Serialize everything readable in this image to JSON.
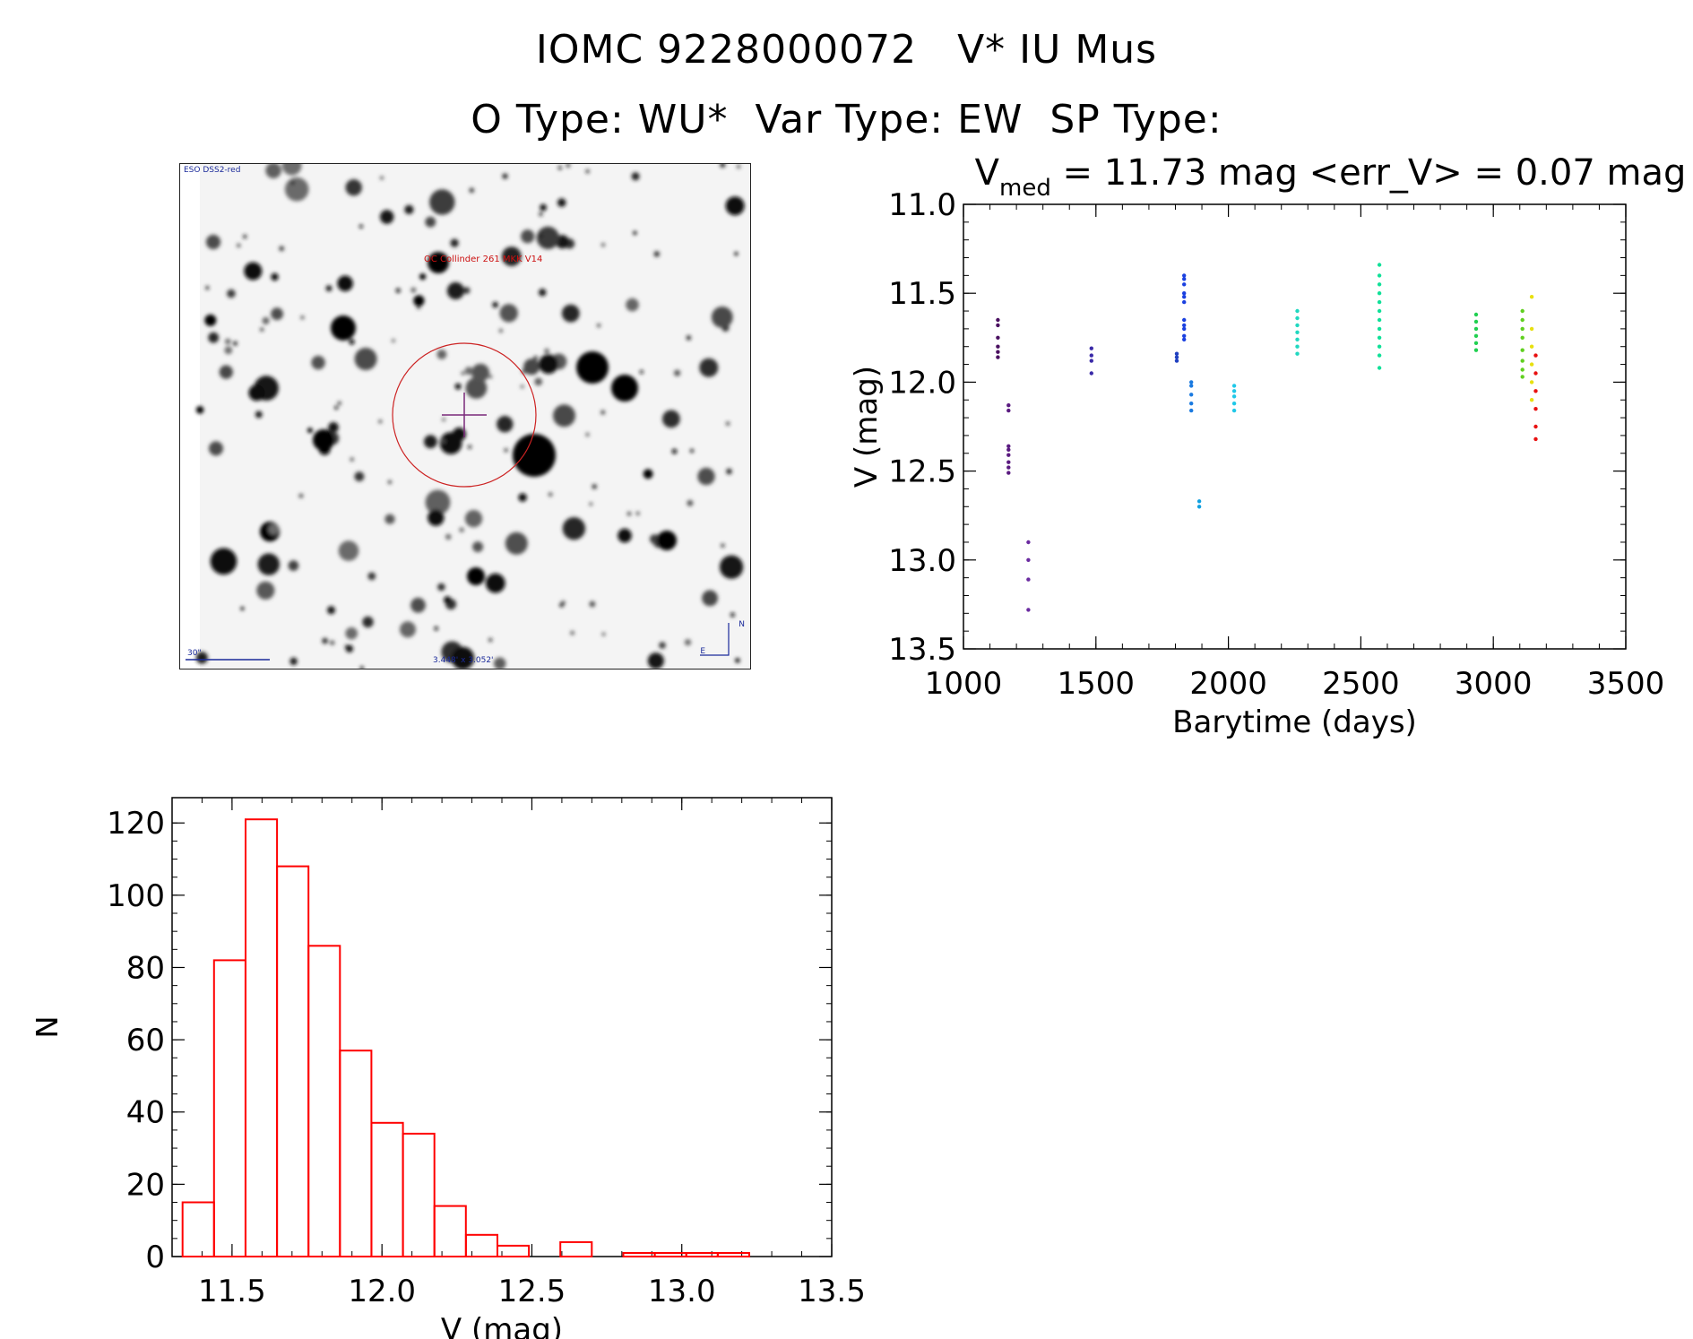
{
  "header": {
    "title_line1": "IOMC 9228000072   V* IU Mus",
    "title_line2": "O Type: WU*  Var Type: EW  SP Type:"
  },
  "sky_image": {
    "corner_label": "ESO DSS2-red",
    "target_label": "OC Collinder 261 MKK V14",
    "scale_bar_label": "30\"",
    "fov_label": "3.448' x 3.052'",
    "compass_n": "N",
    "compass_e": "E",
    "colors": {
      "circle": "#cc2222",
      "crosshair": "#7a2a7a"
    }
  },
  "chart_data": [
    {
      "type": "scatter",
      "title_prefix": "V",
      "title_subscript": "med",
      "title_rest": " = 11.73 mag <err_V> = 0.07 mag",
      "xlabel": "Barytime (days)",
      "ylabel": "V (mag)",
      "xlim": [
        1000,
        3500
      ],
      "ylim": [
        13.5,
        11.0
      ],
      "y_inverted": true,
      "x_ticks": [
        "1000",
        "1500",
        "2000",
        "2500",
        "3000",
        "3500"
      ],
      "y_ticks": [
        "11.0",
        "11.5",
        "12.0",
        "12.5",
        "13.0",
        "13.5"
      ],
      "color_by": "time",
      "groups": [
        {
          "x": 1130,
          "y": [
            11.65,
            11.68,
            11.75,
            11.8,
            11.83,
            11.86
          ],
          "color": "#4a1060"
        },
        {
          "x": 1170,
          "y": [
            12.13,
            12.16,
            12.36,
            12.38,
            12.41,
            12.45,
            12.48,
            12.51
          ],
          "color": "#5a1a80"
        },
        {
          "x": 1245,
          "y": [
            12.9,
            13.0,
            13.11,
            13.28
          ],
          "color": "#6a2aa0"
        },
        {
          "x": 1483,
          "y": [
            11.81,
            11.85,
            11.88,
            11.95
          ],
          "color": "#3a2aa8"
        },
        {
          "x": 1805,
          "y": [
            11.84,
            11.86,
            11.88
          ],
          "color": "#2040c0"
        },
        {
          "x": 1833,
          "y": [
            11.4,
            11.42,
            11.45,
            11.5,
            11.52,
            11.55,
            11.65,
            11.68,
            11.7,
            11.74,
            11.76
          ],
          "color": "#1a40e0"
        },
        {
          "x": 1860,
          "y": [
            12.0,
            12.02,
            12.07,
            12.12,
            12.16
          ],
          "color": "#1a7ae0"
        },
        {
          "x": 1890,
          "y": [
            12.67,
            12.7
          ],
          "color": "#10a0e0"
        },
        {
          "x": 2022,
          "y": [
            12.02,
            12.05,
            12.08,
            12.12,
            12.16
          ],
          "color": "#20c8e8"
        },
        {
          "x": 2260,
          "y": [
            11.6,
            11.64,
            11.68,
            11.72,
            11.76,
            11.8,
            11.84
          ],
          "color": "#20d8c0"
        },
        {
          "x": 2570,
          "y": [
            11.34,
            11.4,
            11.45,
            11.5,
            11.55,
            11.6,
            11.65,
            11.7,
            11.75,
            11.8,
            11.85,
            11.92
          ],
          "color": "#10e098"
        },
        {
          "x": 2935,
          "y": [
            11.62,
            11.66,
            11.7,
            11.74,
            11.78,
            11.82
          ],
          "color": "#20d050"
        },
        {
          "x": 3110,
          "y": [
            11.6,
            11.65,
            11.7,
            11.75,
            11.82,
            11.88,
            11.93,
            11.97
          ],
          "color": "#60d020"
        },
        {
          "x": 3145,
          "y": [
            11.52,
            11.7,
            11.8,
            11.9,
            12.0,
            12.1
          ],
          "color": "#e8e010"
        },
        {
          "x": 3160,
          "y": [
            11.85,
            11.95,
            12.05,
            12.15,
            12.25,
            12.32
          ],
          "color": "#e81010"
        }
      ]
    },
    {
      "type": "bar",
      "style": "histogram",
      "xlabel": "V (mag)",
      "ylabel": "N",
      "xlim": [
        11.3,
        13.5
      ],
      "ylim": [
        0,
        127
      ],
      "x_ticks": [
        "11.5",
        "12.0",
        "12.5",
        "13.0",
        "13.5"
      ],
      "y_ticks": [
        "0",
        "20",
        "40",
        "60",
        "80",
        "100",
        "120"
      ],
      "bin_width": 0.105,
      "bin_starts": [
        11.335,
        11.44,
        11.545,
        11.65,
        11.755,
        11.86,
        11.965,
        12.07,
        12.175,
        12.28,
        12.385,
        12.49,
        12.595,
        12.7,
        12.805,
        12.91,
        13.015,
        13.12,
        13.225
      ],
      "counts": [
        15,
        82,
        121,
        108,
        86,
        57,
        37,
        34,
        14,
        6,
        3,
        0,
        4,
        0,
        1,
        1,
        1,
        1,
        0
      ],
      "color": "#ff0000"
    }
  ]
}
